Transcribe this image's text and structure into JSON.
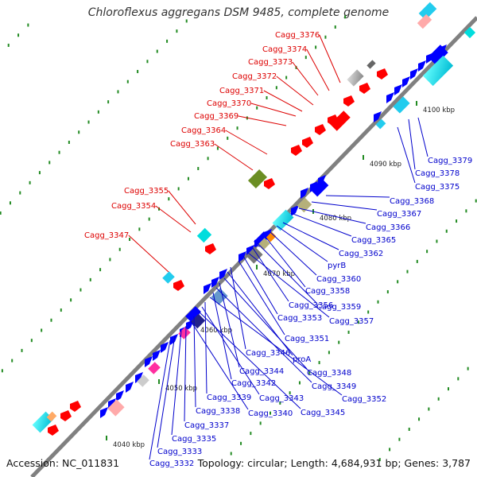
{
  "title": "Chloroflexus aggregans DSM 9485, complete genome",
  "accession": "Accession: NC_011831",
  "topology": "Topology: circular; Length: 4,684,931 bp; Genes: 3,787",
  "colors": {
    "backbone": "#808080",
    "forward_gene": "#ff0000",
    "reverse_gene": "#0000ff",
    "label_forward": "#dd0000",
    "label_reverse": "#0000cc",
    "tick": "#228b22"
  },
  "chart_data": {
    "type": "linear-genome-map",
    "ticks": [
      "4040 kbp",
      "4050 kbp",
      "4060 kbp",
      "4070 kbp",
      "4080 kbp",
      "4090 kbp",
      "4100 kbp"
    ],
    "forward_labels": [
      "Cagg_3376",
      "Cagg_3374",
      "Cagg_3373",
      "Cagg_3372",
      "Cagg_3371",
      "Cagg_3370",
      "Cagg_3369",
      "Cagg_3364",
      "Cagg_3363",
      "Cagg_3355",
      "Cagg_3354",
      "Cagg_3347"
    ],
    "reverse_labels": [
      "Cagg_3379",
      "Cagg_3378",
      "Cagg_3375",
      "Cagg_3368",
      "Cagg_3367",
      "Cagg_3366",
      "Cagg_3365",
      "Cagg_3362",
      "pyrB",
      "Cagg_3360",
      "Cagg_3358",
      "Cagg_3359",
      "Cagg_3356",
      "Cagg_3357",
      "Cagg_3353",
      "Cagg_3351",
      "Cagg_3346",
      "proA",
      "Cagg_3348",
      "Cagg_3344",
      "Cagg_3349",
      "Cagg_3342",
      "Cagg_3352",
      "Cagg_3339",
      "Cagg_3343",
      "Cagg_3345",
      "Cagg_3338",
      "Cagg_3340",
      "Cagg_3337",
      "Cagg_3335",
      "Cagg_3333",
      "Cagg_3332"
    ]
  }
}
